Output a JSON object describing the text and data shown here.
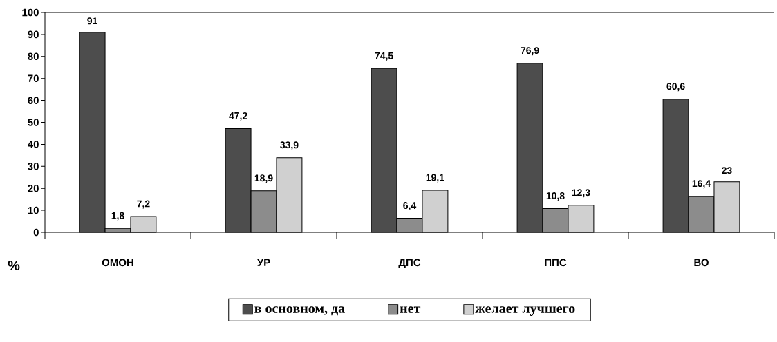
{
  "chart_data": {
    "type": "bar",
    "ylabel": "%",
    "categories": [
      "ОМОН",
      "УР",
      "ДПС",
      "ППС",
      "ВО"
    ],
    "series": [
      {
        "name": "в основном, да",
        "color": "#4d4d4d",
        "values": [
          91,
          47.2,
          74.5,
          76.9,
          60.6
        ],
        "value_labels": [
          "91",
          "47,2",
          "74,5",
          "76,9",
          "60,6"
        ]
      },
      {
        "name": "нет",
        "color": "#8c8c8c",
        "values": [
          1.8,
          18.9,
          6.4,
          10.8,
          16.4
        ],
        "value_labels": [
          "1,8",
          "18,9",
          "6,4",
          "10,8",
          "16,4"
        ]
      },
      {
        "name": "желает лучшего",
        "color": "#d0d0d0",
        "values": [
          7.2,
          33.9,
          19.1,
          12.3,
          23
        ],
        "value_labels": [
          "7,2",
          "33,9",
          "19,1",
          "12,3",
          "23"
        ]
      }
    ],
    "ylim": [
      0,
      100
    ],
    "yticks": [
      0,
      10,
      20,
      30,
      40,
      50,
      60,
      70,
      80,
      90,
      100
    ],
    "grid": false,
    "legend": "bottom"
  }
}
